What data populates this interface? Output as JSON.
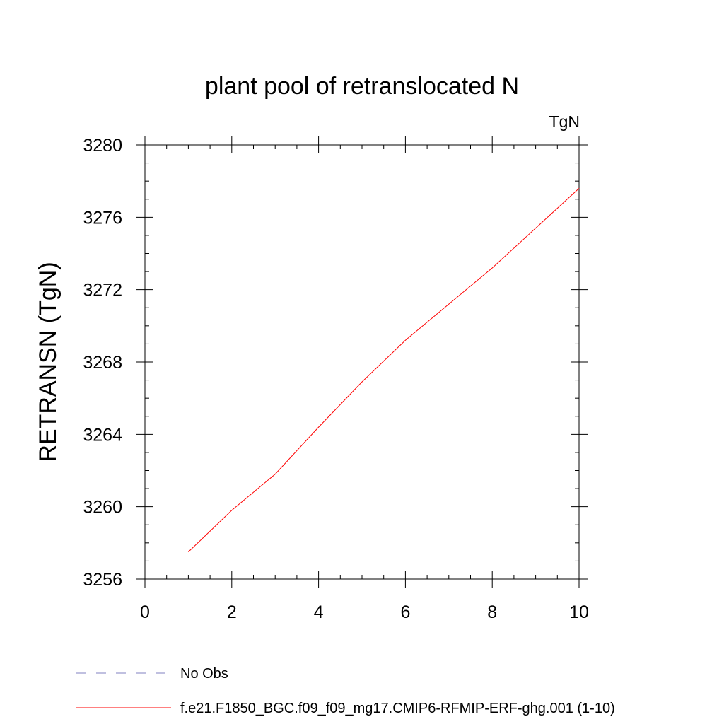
{
  "chart_data": {
    "type": "line",
    "title": "plant pool of retranslocated N",
    "units_label": "TgN",
    "ylabel": "RETRANSN  (TgN)",
    "xlabel": "",
    "xlim": [
      0,
      10
    ],
    "ylim": [
      3256,
      3280
    ],
    "xticks": [
      0,
      2,
      4,
      6,
      8,
      10
    ],
    "yticks": [
      3256,
      3260,
      3264,
      3268,
      3272,
      3276,
      3280
    ],
    "xtick_labels": [
      "0",
      "2",
      "4",
      "6",
      "8",
      "10"
    ],
    "ytick_labels": [
      "3256",
      "3260",
      "3264",
      "3268",
      "3272",
      "3276",
      "3280"
    ],
    "grid": false,
    "legend_position": "bottom",
    "series": [
      {
        "name": "f.e21.F1850_BGC.f09_f09_mg17.CMIP6-RFMIP-ERF-ghg.001 (1-10)",
        "color": "#ff0000",
        "style": "solid",
        "x": [
          1,
          2,
          3,
          4,
          5,
          6,
          7,
          8,
          9,
          10
        ],
        "y": [
          3257.5,
          3259.8,
          3261.8,
          3264.4,
          3266.9,
          3269.2,
          3271.2,
          3273.2,
          3275.4,
          3277.6
        ]
      }
    ],
    "legend": [
      {
        "label": "No Obs",
        "color": "#8080c0",
        "style": "dashed"
      },
      {
        "label": "f.e21.F1850_BGC.f09_f09_mg17.CMIP6-RFMIP-ERF-ghg.001 (1-10)",
        "color": "#ff0000",
        "style": "solid"
      }
    ]
  }
}
